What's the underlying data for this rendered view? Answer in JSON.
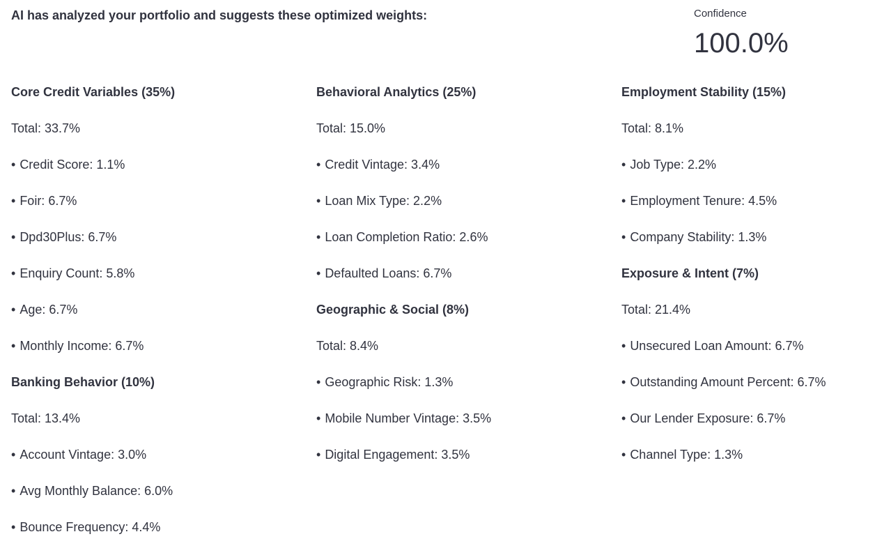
{
  "intro": "AI has analyzed your portfolio and suggests these optimized weights:",
  "confidence": {
    "label": "Confidence",
    "value": "100.0%"
  },
  "columns": [
    {
      "groups": [
        {
          "title": "Core Credit Variables (35%)",
          "total": "Total: 33.7%",
          "items": [
            "Credit Score: 1.1%",
            "Foir: 6.7%",
            "Dpd30Plus: 6.7%",
            "Enquiry Count: 5.8%",
            "Age: 6.7%",
            "Monthly Income: 6.7%"
          ]
        },
        {
          "title": "Banking Behavior (10%)",
          "total": "Total: 13.4%",
          "items": [
            "Account Vintage: 3.0%",
            "Avg Monthly Balance: 6.0%",
            "Bounce Frequency: 4.4%"
          ]
        }
      ]
    },
    {
      "groups": [
        {
          "title": "Behavioral Analytics (25%)",
          "total": "Total: 15.0%",
          "items": [
            "Credit Vintage: 3.4%",
            "Loan Mix Type: 2.2%",
            "Loan Completion Ratio: 2.6%",
            "Defaulted Loans: 6.7%"
          ]
        },
        {
          "title": "Geographic & Social (8%)",
          "total": "Total: 8.4%",
          "items": [
            "Geographic Risk: 1.3%",
            "Mobile Number Vintage: 3.5%",
            "Digital Engagement: 3.5%"
          ]
        }
      ]
    },
    {
      "groups": [
        {
          "title": "Employment Stability (15%)",
          "total": "Total: 8.1%",
          "items": [
            "Job Type: 2.2%",
            "Employment Tenure: 4.5%",
            "Company Stability: 1.3%"
          ]
        },
        {
          "title": "Exposure & Intent (7%)",
          "total": "Total: 21.4%",
          "items": [
            "Unsecured Loan Amount: 6.7%",
            "Outstanding Amount Percent: 6.7%",
            "Our Lender Exposure: 6.7%",
            "Channel Type: 1.3%"
          ]
        }
      ]
    }
  ]
}
